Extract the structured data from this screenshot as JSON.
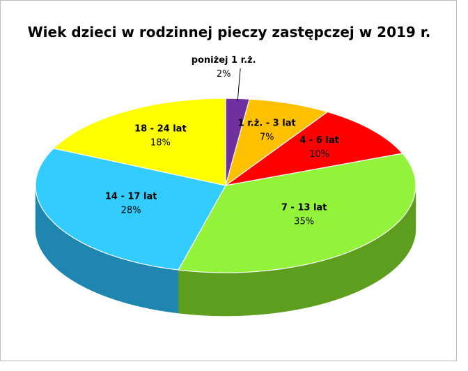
{
  "chart_data": {
    "type": "pie",
    "title": "Wiek dzieci w rodzinnej pieczy zastępczej w 2019 r.",
    "categories": [
      "poniżej 1 r.ż.",
      "1 r.ż. - 3 lat",
      "4 - 6 lat",
      "7 - 13 lat",
      "14 - 17 lat",
      "18 - 24 lat"
    ],
    "values": [
      2,
      7,
      10,
      35,
      28,
      18
    ],
    "value_labels": [
      "2%",
      "7%",
      "10%",
      "35%",
      "28%",
      "18%"
    ],
    "colors": [
      "#7030A0",
      "#FFC000",
      "#FF0000",
      "#92F33A",
      "#33CCFF",
      "#FFFF00"
    ],
    "side_colors": [
      "#4b1f6e",
      "#b88a00",
      "#a30000",
      "#5e9e1f",
      "#1f86b0",
      "#b3b300"
    ],
    "style": "3d",
    "legend": "none"
  }
}
